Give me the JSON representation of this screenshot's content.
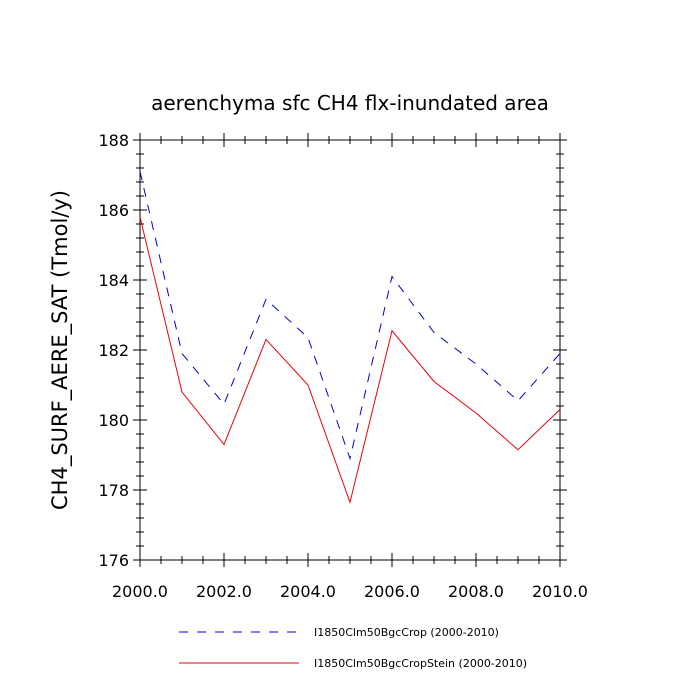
{
  "chart_data": {
    "type": "line",
    "title": "aerenchyma sfc CH4 flx-inundated area",
    "xlabel": "",
    "ylabel": "CH4_SURF_AERE_SAT  (Tmol/y)",
    "xlim": [
      2000,
      2010
    ],
    "ylim": [
      176,
      188
    ],
    "x_ticks": [
      2000,
      2002,
      2004,
      2006,
      2008,
      2010
    ],
    "x_tick_labels": [
      "2000.0",
      "2002.0",
      "2004.0",
      "2006.0",
      "2008.0",
      "2010.0"
    ],
    "y_ticks": [
      176,
      178,
      180,
      182,
      184,
      186,
      188
    ],
    "y_tick_labels": [
      "176",
      "178",
      "180",
      "182",
      "184",
      "186",
      "188"
    ],
    "x": [
      2000,
      2001,
      2002,
      2003,
      2004,
      2005,
      2006,
      2007,
      2008,
      2009,
      2010
    ],
    "series": [
      {
        "name": "I1850Clm50BgcCrop (2000-2010)",
        "color": "#0000cc",
        "dash": "dashed",
        "values": [
          187.1,
          181.9,
          180.45,
          183.45,
          182.35,
          178.9,
          184.1,
          182.5,
          181.6,
          180.55,
          181.9
        ]
      },
      {
        "name": "I1850Clm50BgcCropStein (2000-2010)",
        "color": "#e8000b",
        "dash": "solid",
        "values": [
          185.8,
          180.8,
          179.3,
          182.3,
          181.0,
          177.65,
          182.55,
          181.1,
          180.2,
          179.15,
          180.3
        ]
      }
    ],
    "grid": false,
    "legend_position": "bottom"
  }
}
